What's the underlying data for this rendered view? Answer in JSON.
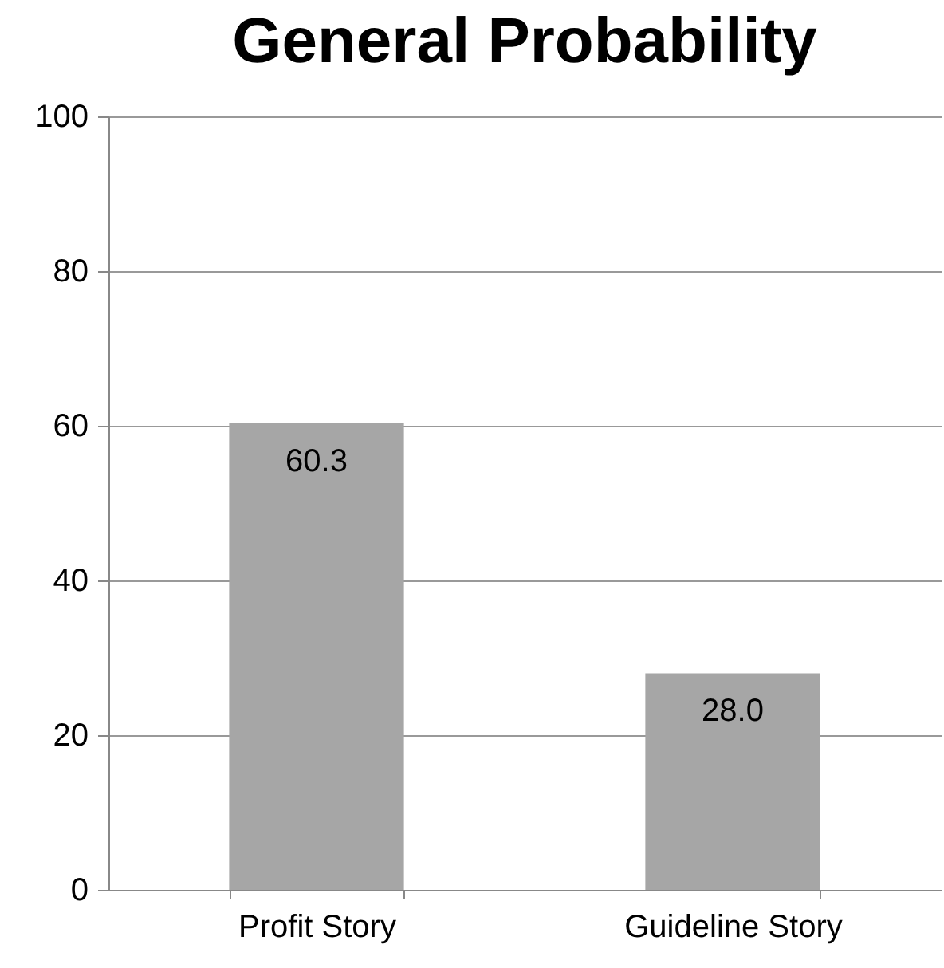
{
  "chart_data": {
    "type": "bar",
    "title": "General Probability",
    "categories": [
      "Profit Story",
      "Guideline Story"
    ],
    "values": [
      60.3,
      28.0
    ],
    "value_labels": [
      "60.3",
      "28.0"
    ],
    "color": "#a6a6a6",
    "ylim": [
      0,
      100
    ],
    "yticks": [
      0,
      20,
      40,
      60,
      80,
      100
    ],
    "grid": "y"
  }
}
